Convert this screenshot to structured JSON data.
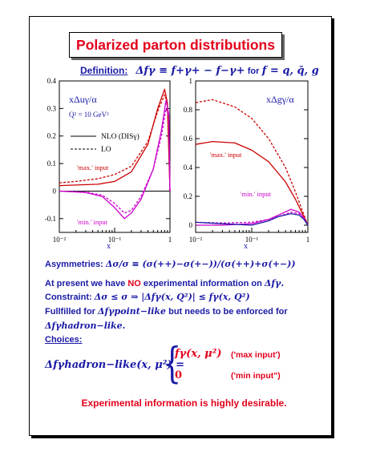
{
  "title": "Polarized parton distributions",
  "definition": {
    "label": "Definition:",
    "formula": "Δfγ ≡ f+γ+ − f−γ+",
    "for_text": "for",
    "flavors": "f = q, q̄, g"
  },
  "chart_data": [
    {
      "type": "line",
      "title": "xΔuγ/α",
      "annotation": "Q² = 10 GeV²",
      "xlabel": "x",
      "xscale": "log",
      "xlim": [
        0.01,
        1
      ],
      "ylim": [
        -0.15,
        0.4
      ],
      "x_ticks": [
        "10⁻²",
        "10⁻¹",
        "1"
      ],
      "y_ticks": [
        "-0.1",
        "0",
        "0.1",
        "0.2",
        "0.3",
        "0.4"
      ],
      "legend": [
        {
          "label": "NLO (DISγ)",
          "style": "solid"
        },
        {
          "label": "LO",
          "style": "dashed"
        }
      ],
      "curve_labels": [
        "'max.' input",
        "'min.' input"
      ],
      "series": [
        {
          "name": "'max.' input NLO",
          "style": "solid",
          "color": "#cc0000",
          "x": [
            0.01,
            0.02,
            0.05,
            0.1,
            0.2,
            0.4,
            0.6,
            0.8,
            0.9,
            1.0
          ],
          "values": [
            0.02,
            0.022,
            0.025,
            0.035,
            0.07,
            0.17,
            0.3,
            0.37,
            0.32,
            0.0
          ]
        },
        {
          "name": "'max.' input LO",
          "style": "dashed",
          "color": "#cc0000",
          "x": [
            0.01,
            0.02,
            0.05,
            0.1,
            0.2,
            0.4,
            0.6,
            0.8,
            0.9,
            1.0
          ],
          "values": [
            0.03,
            0.035,
            0.045,
            0.06,
            0.09,
            0.18,
            0.29,
            0.35,
            0.32,
            0.0
          ]
        },
        {
          "name": "'min.' input NLO",
          "style": "solid",
          "color": "#cc00cc",
          "x": [
            0.01,
            0.03,
            0.06,
            0.1,
            0.15,
            0.2,
            0.3,
            0.5,
            0.7,
            0.85,
            0.95,
            1.0
          ],
          "values": [
            0.0,
            -0.005,
            -0.02,
            -0.06,
            -0.1,
            -0.08,
            -0.03,
            0.08,
            0.22,
            0.33,
            0.28,
            0.0
          ]
        },
        {
          "name": "'min.' input LO",
          "style": "dashed",
          "color": "#cc00cc",
          "x": [
            0.01,
            0.03,
            0.06,
            0.1,
            0.15,
            0.2,
            0.3,
            0.5,
            0.7,
            0.85,
            0.95,
            1.0
          ],
          "values": [
            0.0,
            -0.003,
            -0.015,
            -0.045,
            -0.08,
            -0.07,
            -0.02,
            0.08,
            0.2,
            0.3,
            0.27,
            0.0
          ]
        }
      ]
    },
    {
      "type": "line",
      "title": "xΔgγ/α",
      "xlabel": "x",
      "xscale": "log",
      "xlim": [
        0.01,
        1
      ],
      "ylim": [
        -0.05,
        1.0
      ],
      "x_ticks": [
        "10⁻²",
        "10⁻¹",
        "1"
      ],
      "y_ticks": [
        "0",
        "0.2",
        "0.4",
        "0.6",
        "0.8",
        "1"
      ],
      "curve_labels": [
        "'max.' input",
        "'min.' input"
      ],
      "series": [
        {
          "name": "'max.' input NLO",
          "style": "solid",
          "color": "#cc0000",
          "x": [
            0.01,
            0.02,
            0.05,
            0.1,
            0.2,
            0.4,
            0.6,
            0.8,
            1.0
          ],
          "values": [
            0.56,
            0.58,
            0.57,
            0.52,
            0.44,
            0.3,
            0.18,
            0.08,
            0.0
          ]
        },
        {
          "name": "'max.' input LO",
          "style": "dashed",
          "color": "#cc0000",
          "x": [
            0.01,
            0.02,
            0.05,
            0.1,
            0.2,
            0.4,
            0.6,
            0.8,
            1.0
          ],
          "values": [
            0.85,
            0.87,
            0.82,
            0.74,
            0.6,
            0.4,
            0.23,
            0.1,
            0.0
          ]
        },
        {
          "name": "'min.' input NLO",
          "style": "solid",
          "color": "#cc00cc",
          "x": [
            0.01,
            0.03,
            0.1,
            0.2,
            0.3,
            0.5,
            0.7,
            0.85,
            1.0
          ],
          "values": [
            0.0,
            0.0,
            0.01,
            0.04,
            0.07,
            0.11,
            0.09,
            0.05,
            0.0
          ]
        },
        {
          "name": "'min.' input LO",
          "style": "dashed",
          "color": "#cc00cc",
          "x": [
            0.01,
            0.03,
            0.1,
            0.2,
            0.3,
            0.5,
            0.7,
            0.85,
            1.0
          ],
          "values": [
            0.02,
            0.015,
            0.02,
            0.04,
            0.06,
            0.09,
            0.08,
            0.05,
            0.0
          ]
        },
        {
          "name": "'min.' input blue",
          "style": "solid",
          "color": "#1a1aa6",
          "x": [
            0.01,
            0.03,
            0.1,
            0.2,
            0.3,
            0.5,
            0.7,
            0.85,
            1.0
          ],
          "values": [
            0.02,
            0.01,
            0.0,
            0.03,
            0.06,
            0.08,
            0.07,
            0.04,
            0.0
          ]
        }
      ]
    }
  ],
  "text": {
    "asym_label": "Asymmetries:",
    "asym_formula": "Δσ/σ ≡ (σ(++)−σ(+−))/(σ(++)+σ(+−))",
    "present_1": "At present we have",
    "present_no": "NO",
    "present_2": "experimental information on",
    "present_math": "Δfγ.",
    "constraint_label": "Constraint:",
    "constraint_formula": "Δσ ≤ σ ⇒ |Δfγ(x, Q²)| ≤ fγ(x, Q²)",
    "fulfilled_1": "Fullfilled for",
    "fulfilled_math": "Δfγpoint−like",
    "fulfilled_2": "but needs to be enforced for",
    "hadron_math": "Δfγhadron−like.",
    "choices_label": "Choices:",
    "lhs": "Δfγhadron−like(x, μ²) =",
    "case_1": "fγ(x, μ²)",
    "case_1_label": "('max input')",
    "case_2": "0",
    "case_2_label": "('min input\")",
    "final": "Experimental information is highly desirable."
  },
  "colors": {
    "red": "#e3001b",
    "blue": "#1a1aa6",
    "magenta": "#cc00cc"
  }
}
